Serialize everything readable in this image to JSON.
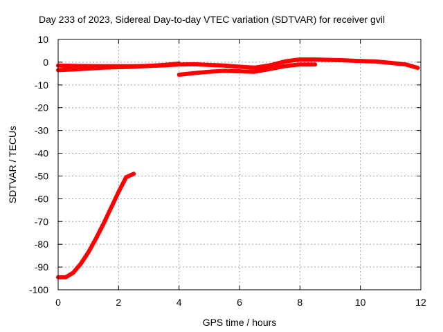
{
  "chart_data": {
    "type": "line",
    "title": "Day 233 of 2023, Sidereal Day-to-day VTEC variation (SDTVAR) for receiver gvil",
    "xlabel": "GPS time / hours",
    "ylabel": "SDTVAR / TECUs",
    "xlim": [
      0,
      12
    ],
    "ylim": [
      -100,
      10
    ],
    "xticks": [
      0,
      2,
      4,
      6,
      8,
      10,
      12
    ],
    "yticks": [
      10,
      0,
      -10,
      -20,
      -30,
      -40,
      -50,
      -60,
      -70,
      -80,
      -90,
      -100
    ],
    "grid": true,
    "legend": "none",
    "color": "#ff0000",
    "series": [
      {
        "x": [
          0.0,
          0.25,
          0.5,
          0.75,
          1.0,
          1.25,
          1.5,
          1.75,
          2.0,
          2.25,
          2.5
        ],
        "y": [
          -94.5,
          -94.5,
          -92.5,
          -88.5,
          -83.5,
          -77.5,
          -71,
          -64,
          -57,
          -50.5,
          -49
        ]
      },
      {
        "x": [
          0.0,
          0.5,
          1.0,
          1.5,
          2.0,
          2.5,
          3.0,
          3.5,
          4.0,
          4.5,
          5.0,
          5.5,
          6.0,
          6.5,
          7.0,
          7.5,
          8.0,
          8.5,
          9.0,
          9.5,
          10.0,
          10.5,
          11.0,
          11.5,
          11.9
        ],
        "y": [
          -3.5,
          -3.2,
          -2.8,
          -2.4,
          -2.2,
          -2.0,
          -1.6,
          -1.4,
          -1.0,
          -0.9,
          -1.2,
          -1.5,
          -2.0,
          -2.4,
          -1.4,
          0.3,
          1.2,
          1.2,
          1.0,
          0.8,
          0.5,
          0.3,
          -0.3,
          -1.0,
          -2.5
        ]
      },
      {
        "x": [
          0.0,
          0.5,
          1.0,
          1.5,
          2.0,
          2.5,
          3.0,
          3.5,
          4.0
        ],
        "y": [
          -1.5,
          -1.6,
          -1.7,
          -1.8,
          -1.8,
          -1.8,
          -1.6,
          -1.2,
          -0.6
        ]
      },
      {
        "x": [
          4.0,
          4.5,
          5.0,
          5.5,
          6.0,
          6.5,
          7.0,
          7.5,
          8.0,
          8.5
        ],
        "y": [
          -5.5,
          -4.8,
          -4.2,
          -3.8,
          -4.0,
          -4.2,
          -3.0,
          -1.7,
          -1.0,
          -1.0
        ]
      }
    ]
  }
}
